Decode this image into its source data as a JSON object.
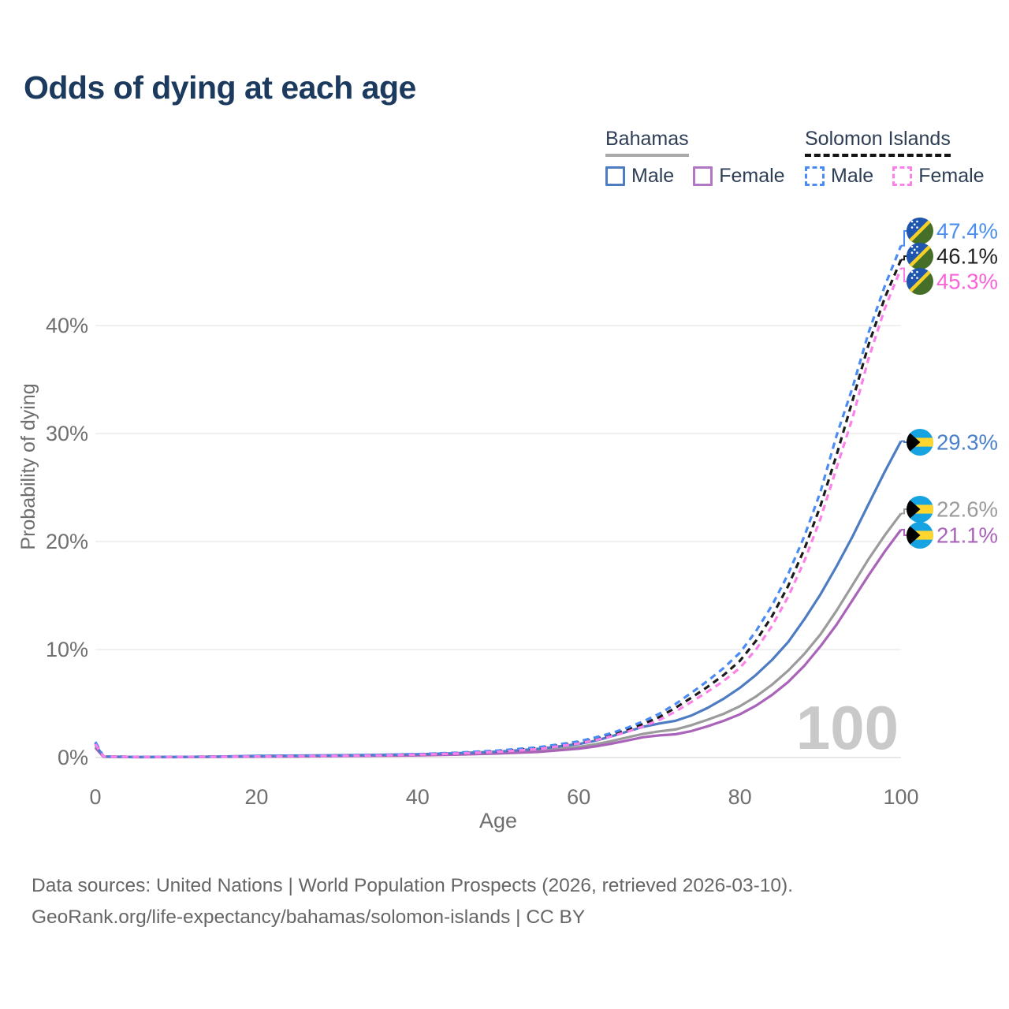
{
  "title": "Odds of dying at each age",
  "legend": {
    "groups": [
      {
        "name": "Bahamas",
        "underline_style": "solid",
        "items": [
          {
            "label": "Male",
            "color": "#4d7cc3",
            "dashed": false
          },
          {
            "label": "Female",
            "color": "#b277c2",
            "dashed": false
          }
        ]
      },
      {
        "name": "Solomon Islands",
        "underline_style": "dashed",
        "items": [
          {
            "label": "Male",
            "color": "#4b8bf4",
            "dashed": true
          },
          {
            "label": "Female",
            "color": "#fb80e8",
            "dashed": true
          }
        ]
      }
    ]
  },
  "watermark": "100",
  "chart_data": {
    "type": "line",
    "title": "Odds of dying at each age",
    "xlabel": "Age",
    "ylabel": "Probability of dying",
    "xlim": [
      0,
      100
    ],
    "ylim_pct": [
      0,
      48
    ],
    "x_ticks": [
      0,
      20,
      40,
      60,
      80,
      100
    ],
    "y_ticks_pct": [
      0,
      10,
      20,
      30,
      40
    ],
    "y_tick_labels": [
      "0%",
      "10%",
      "20%",
      "30%",
      "40%"
    ],
    "grid": true,
    "x": [
      0,
      1,
      5,
      10,
      15,
      20,
      25,
      30,
      35,
      40,
      45,
      50,
      55,
      60,
      62,
      64,
      66,
      68,
      70,
      72,
      74,
      76,
      78,
      80,
      82,
      84,
      86,
      88,
      90,
      92,
      94,
      96,
      98,
      100
    ],
    "series": [
      {
        "name": "Solomon Islands — Male",
        "country": "Solomon Islands",
        "sex": "Male",
        "color": "#4b8bf4",
        "dashed": true,
        "end_label": "47.4%",
        "end_label_color": "#4a8ff0",
        "flag": "solomon-islands",
        "values_pct": [
          1.45,
          0.12,
          0.06,
          0.06,
          0.09,
          0.13,
          0.16,
          0.2,
          0.24,
          0.32,
          0.45,
          0.65,
          0.95,
          1.5,
          1.85,
          2.25,
          2.75,
          3.35,
          4.05,
          4.95,
          6.0,
          7.1,
          8.3,
          9.7,
          11.7,
          14.1,
          17.0,
          20.5,
          24.6,
          29.8,
          34.3,
          39.4,
          43.7,
          47.4
        ]
      },
      {
        "name": "Solomon Islands — Both sexes",
        "country": "Solomon Islands",
        "sex": "Both",
        "color": "#1c1c1c",
        "dashed": true,
        "end_label": "46.1%",
        "end_label_color": "#222222",
        "flag": "solomon-islands",
        "values_pct": [
          1.35,
          0.11,
          0.055,
          0.055,
          0.08,
          0.11,
          0.14,
          0.18,
          0.22,
          0.29,
          0.41,
          0.59,
          0.87,
          1.4,
          1.72,
          2.1,
          2.56,
          3.1,
          3.75,
          4.6,
          5.55,
          6.55,
          7.65,
          8.95,
          10.8,
          13.1,
          15.9,
          19.3,
          23.3,
          28.0,
          33.1,
          38.3,
          42.6,
          46.1
        ]
      },
      {
        "name": "Solomon Islands — Female",
        "country": "Solomon Islands",
        "sex": "Female",
        "color": "#fb80e8",
        "dashed": true,
        "end_label": "45.3%",
        "end_label_color": "#f863d8",
        "flag": "solomon-islands",
        "values_pct": [
          1.25,
          0.1,
          0.05,
          0.05,
          0.07,
          0.1,
          0.13,
          0.16,
          0.2,
          0.26,
          0.37,
          0.53,
          0.78,
          1.3,
          1.6,
          1.95,
          2.38,
          2.88,
          3.48,
          4.25,
          5.15,
          6.1,
          7.1,
          8.3,
          10.0,
          12.2,
          14.9,
          18.2,
          22.1,
          26.8,
          31.5,
          37.0,
          41.6,
          45.3
        ]
      },
      {
        "name": "Bahamas — Male",
        "country": "Bahamas",
        "sex": "Male",
        "color": "#4d7cc3",
        "dashed": false,
        "end_label": "29.3%",
        "end_label_color": "#4a80c9",
        "flag": "bahamas",
        "values_pct": [
          1.2,
          0.1,
          0.05,
          0.06,
          0.09,
          0.15,
          0.18,
          0.21,
          0.25,
          0.31,
          0.4,
          0.55,
          0.8,
          1.25,
          1.55,
          1.95,
          2.4,
          2.85,
          3.15,
          3.4,
          3.9,
          4.6,
          5.45,
          6.45,
          7.65,
          9.05,
          10.7,
          12.8,
          15.1,
          17.7,
          20.5,
          23.5,
          26.5,
          29.3
        ]
      },
      {
        "name": "Bahamas — Both sexes",
        "country": "Bahamas",
        "sex": "Both",
        "color": "#9b9b9b",
        "dashed": false,
        "end_label": "22.6%",
        "end_label_color": "#9b9b9b",
        "flag": "bahamas",
        "values_pct": [
          1.0,
          0.08,
          0.04,
          0.05,
          0.07,
          0.11,
          0.13,
          0.16,
          0.19,
          0.24,
          0.32,
          0.44,
          0.62,
          0.98,
          1.22,
          1.52,
          1.86,
          2.2,
          2.42,
          2.6,
          3.0,
          3.5,
          4.05,
          4.75,
          5.65,
          6.75,
          8.05,
          9.6,
          11.4,
          13.6,
          16.0,
          18.4,
          20.6,
          22.6
        ]
      },
      {
        "name": "Bahamas — Female",
        "country": "Bahamas",
        "sex": "Female",
        "color": "#a963b8",
        "dashed": false,
        "end_label": "21.1%",
        "end_label_color": "#a963b8",
        "flag": "bahamas",
        "values_pct": [
          0.9,
          0.07,
          0.035,
          0.04,
          0.06,
          0.08,
          0.1,
          0.13,
          0.16,
          0.2,
          0.27,
          0.37,
          0.52,
          0.82,
          1.02,
          1.28,
          1.58,
          1.88,
          2.05,
          2.15,
          2.45,
          2.9,
          3.4,
          4.0,
          4.8,
          5.8,
          7.0,
          8.5,
          10.3,
          12.3,
          14.6,
          16.9,
          19.1,
          21.1
        ]
      }
    ],
    "legend_position": "top-right",
    "watermark": "100"
  },
  "footer": {
    "line1": "Data sources: United Nations | World Population Prospects (2026, retrieved 2026-03-10).",
    "line2": "GeoRank.org/life-expectancy/bahamas/solomon-islands | CC BY"
  },
  "colors": {
    "title": "#1c3a5e",
    "axis_text": "#6f6f6f",
    "gridline": "#ebebeb",
    "baseline": "#e0e0e0",
    "watermark": "#c9c9c9",
    "footer_text": "#666666"
  }
}
